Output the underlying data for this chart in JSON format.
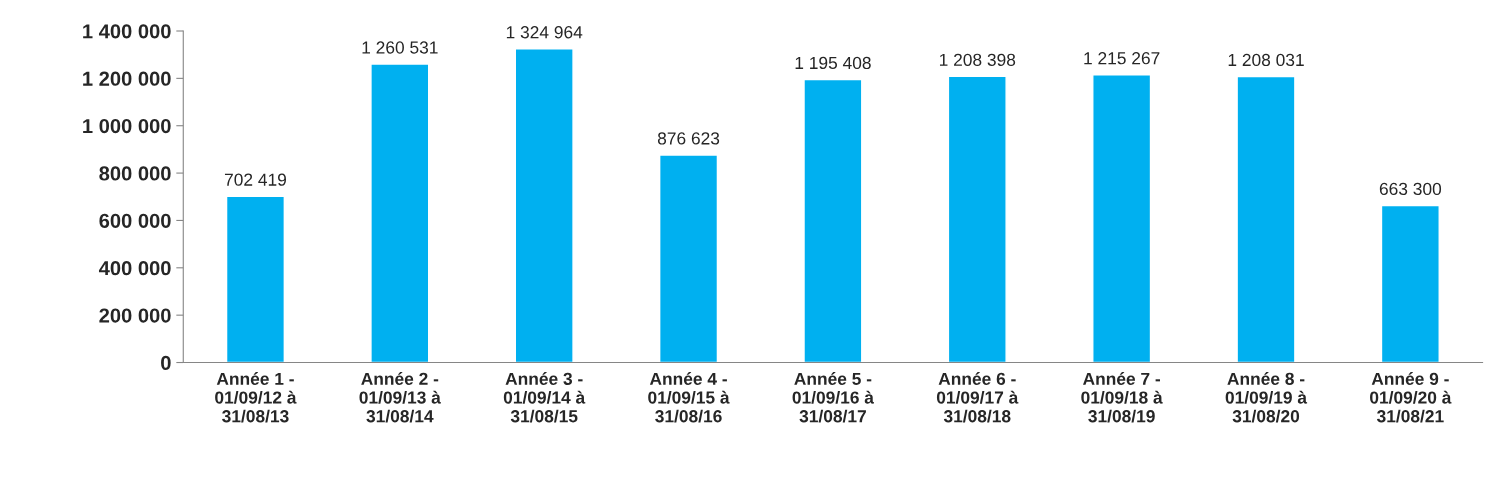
{
  "chart_data": {
    "type": "bar",
    "categories": [
      "Année 1 -\n01/09/12 à\n31/08/13",
      "Année 2 -\n01/09/13 à\n31/08/14",
      "Année 3 -\n01/09/14 à\n31/08/15",
      "Année 4 -\n01/09/15 à\n31/08/16",
      "Année 5 -\n01/09/16 à\n31/08/17",
      "Année 6 -\n01/09/17 à\n31/08/18",
      "Année 7 -\n01/09/18 à\n31/08/19",
      "Année 8 -\n01/09/19 à\n31/08/20",
      "Année 9 -\n01/09/20 à\n31/08/21"
    ],
    "values": [
      702419,
      1260531,
      1324964,
      876623,
      1195408,
      1208398,
      1215267,
      1208031,
      663300
    ],
    "value_labels": [
      "702 419",
      "1 260 531",
      "1 324 964",
      "876 623",
      "1 195 408",
      "1 208 398",
      "1 215 267",
      "1 208 031",
      "663 300"
    ],
    "color": "#00b0f0",
    "ylim": [
      0,
      1400000
    ],
    "yticks": [
      0,
      {
        "value": 200000,
        "label": "200 000"
      },
      {
        "value": 400000,
        "label": "400 000"
      },
      {
        "value": 600000,
        "label": "600 000"
      },
      {
        "value": 800000,
        "label": "800 000"
      },
      {
        "value": 1000000,
        "label": "1 000 000"
      },
      {
        "value": 1200000,
        "label": "1 200 000"
      },
      {
        "value": 1400000,
        "label": "1 400 000"
      }
    ],
    "grid": false,
    "legend": false
  }
}
